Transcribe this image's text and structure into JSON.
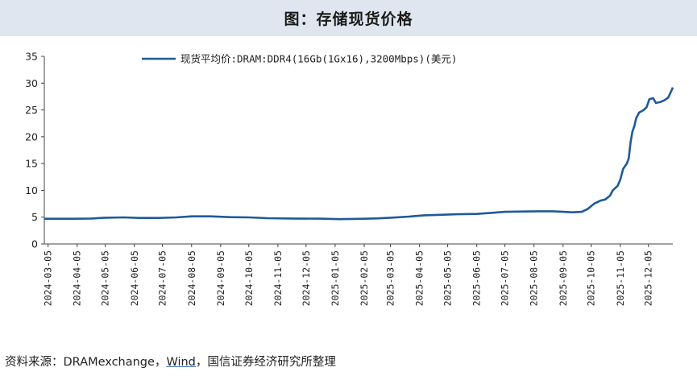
{
  "title": "图：存储现货价格",
  "source": {
    "prefix": "资料来源：DRAMexchange，",
    "wind": "Wind",
    "suffix": "，国信证券经济研究所整理"
  },
  "colors": {
    "line": "#1f5a99",
    "title_bg": "#dfe6ef"
  },
  "chart_data": {
    "type": "line",
    "ylim": [
      0,
      35
    ],
    "yticks": [
      0,
      5,
      10,
      15,
      20,
      25,
      30,
      35
    ],
    "xlim": [
      "2024-03-01",
      "2025-12-31"
    ],
    "xticks": [
      "2024-03-05",
      "2024-04-05",
      "2024-05-05",
      "2024-06-05",
      "2024-07-05",
      "2024-08-05",
      "2024-09-05",
      "2024-10-05",
      "2024-11-05",
      "2024-12-05",
      "2025-01-05",
      "2025-02-05",
      "2025-03-05",
      "2025-04-05",
      "2025-05-05",
      "2025-06-05",
      "2025-07-05",
      "2025-08-05",
      "2025-09-05",
      "2025-10-05",
      "2025-11-05",
      "2025-12-05"
    ],
    "legend_position": "top",
    "grid": false,
    "series": [
      {
        "name": "现货平均价:DRAM:DDR4(16Gb(1Gx16),3200Mbps)(美元)",
        "points": [
          [
            "2024-03-01",
            4.7
          ],
          [
            "2024-04-01",
            4.7
          ],
          [
            "2024-04-20",
            4.75
          ],
          [
            "2024-05-05",
            4.9
          ],
          [
            "2024-05-25",
            4.95
          ],
          [
            "2024-06-10",
            4.85
          ],
          [
            "2024-07-01",
            4.85
          ],
          [
            "2024-07-20",
            4.95
          ],
          [
            "2024-08-05",
            5.15
          ],
          [
            "2024-08-25",
            5.15
          ],
          [
            "2024-09-15",
            5.0
          ],
          [
            "2024-10-05",
            4.95
          ],
          [
            "2024-10-25",
            4.8
          ],
          [
            "2024-11-20",
            4.75
          ],
          [
            "2024-12-20",
            4.72
          ],
          [
            "2025-01-10",
            4.62
          ],
          [
            "2025-02-05",
            4.7
          ],
          [
            "2025-02-20",
            4.78
          ],
          [
            "2025-03-05",
            4.9
          ],
          [
            "2025-03-25",
            5.1
          ],
          [
            "2025-04-10",
            5.35
          ],
          [
            "2025-04-30",
            5.45
          ],
          [
            "2025-05-15",
            5.55
          ],
          [
            "2025-06-05",
            5.6
          ],
          [
            "2025-06-20",
            5.8
          ],
          [
            "2025-07-05",
            6.0
          ],
          [
            "2025-07-25",
            6.05
          ],
          [
            "2025-08-10",
            6.1
          ],
          [
            "2025-08-25",
            6.1
          ],
          [
            "2025-09-05",
            6.0
          ],
          [
            "2025-09-15",
            5.9
          ],
          [
            "2025-09-25",
            6.0
          ],
          [
            "2025-10-01",
            6.5
          ],
          [
            "2025-10-08",
            7.5
          ],
          [
            "2025-10-15",
            8.1
          ],
          [
            "2025-10-20",
            8.3
          ],
          [
            "2025-10-25",
            9.0
          ],
          [
            "2025-10-28",
            10.0
          ],
          [
            "2025-11-02",
            10.8
          ],
          [
            "2025-11-05",
            12.0
          ],
          [
            "2025-11-08",
            14.0
          ],
          [
            "2025-11-12",
            15.0
          ],
          [
            "2025-11-14",
            16.0
          ],
          [
            "2025-11-16",
            19.0
          ],
          [
            "2025-11-18",
            21.0
          ],
          [
            "2025-11-20",
            22.0
          ],
          [
            "2025-11-22",
            23.5
          ],
          [
            "2025-11-25",
            24.5
          ],
          [
            "2025-11-30",
            25.0
          ],
          [
            "2025-12-03",
            25.5
          ],
          [
            "2025-12-06",
            27.0
          ],
          [
            "2025-12-10",
            27.2
          ],
          [
            "2025-12-13",
            26.3
          ],
          [
            "2025-12-18",
            26.5
          ],
          [
            "2025-12-22",
            26.8
          ],
          [
            "2025-12-26",
            27.3
          ],
          [
            "2025-12-28",
            28.0
          ],
          [
            "2025-12-31",
            29.2
          ]
        ]
      }
    ]
  }
}
